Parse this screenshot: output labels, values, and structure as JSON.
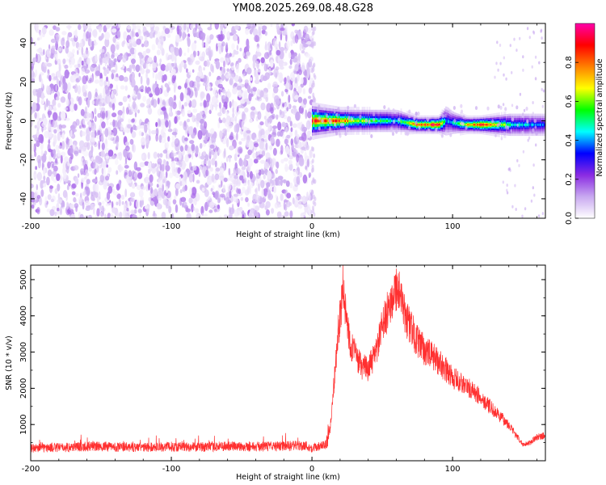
{
  "title": "YM08.2025.269.08.48.G28",
  "chart_data": [
    {
      "type": "heatmap",
      "xlabel": "Height of straight line (km)",
      "ylabel": "Frequency (Hz)",
      "xlim": [
        -200,
        166
      ],
      "ylim": [
        -50,
        50
      ],
      "xticks": [
        -200,
        -100,
        0,
        100
      ],
      "yticks": [
        -40,
        -20,
        0,
        20,
        40
      ],
      "colorbar": {
        "label": "Normalized spectral amplitude",
        "range": [
          0,
          1
        ],
        "ticks": [
          "0.0",
          "0.2",
          "0.4",
          "0.6",
          "0.8"
        ],
        "colormap": [
          "#ffffff",
          "#c8a8f0",
          "#8a2be2",
          "#0000ff",
          "#00ffff",
          "#00ff00",
          "#ffff00",
          "#ff8000",
          "#ff0000",
          "#ff00aa"
        ]
      },
      "noise_region_x": [
        -200,
        0
      ],
      "noise_amplitude_range": [
        0.0,
        0.15
      ],
      "signal_band": {
        "x": [
          0,
          20,
          40,
          60,
          75,
          90,
          95,
          100,
          110,
          120,
          140,
          166
        ],
        "center_frequency_hz": [
          0,
          0,
          0,
          0,
          -2,
          -2,
          0,
          -1,
          -2,
          -2,
          -2,
          -2
        ],
        "peak_amplitude": [
          0.85,
          0.8,
          0.55,
          0.45,
          0.85,
          0.9,
          0.4,
          0.45,
          0.7,
          0.9,
          0.5,
          0.35
        ],
        "bandwidth_hz": [
          4,
          3,
          3,
          3,
          2,
          2,
          4,
          3,
          2,
          2,
          3,
          3
        ]
      }
    },
    {
      "type": "line",
      "xlabel": "Height of straight line (km)",
      "ylabel": "SNR (10 * v/v)",
      "xlim": [
        -200,
        166
      ],
      "ylim": [
        0,
        5400
      ],
      "xticks": [
        -200,
        -100,
        0,
        100
      ],
      "yticks": [
        1000,
        2000,
        3000,
        4000,
        5000
      ],
      "color": "#ff3030",
      "series": [
        {
          "x": [
            -200,
            -180,
            -160,
            -140,
            -120,
            -100,
            -80,
            -60,
            -40,
            -20,
            -5,
            0,
            10,
            13,
            16,
            19,
            21,
            22,
            24,
            27,
            30,
            35,
            40,
            45,
            50,
            55,
            58,
            60,
            62,
            65,
            70,
            75,
            80,
            90,
            100,
            110,
            120,
            130,
            140,
            145,
            150,
            155,
            160,
            166
          ],
          "y": [
            350,
            360,
            400,
            380,
            370,
            390,
            380,
            400,
            390,
            400,
            420,
            350,
            420,
            900,
            2300,
            3700,
            4400,
            4750,
            4100,
            3300,
            3000,
            2600,
            2550,
            2900,
            3700,
            4250,
            4650,
            4800,
            4650,
            4100,
            3700,
            3300,
            3050,
            2750,
            2300,
            2050,
            1750,
            1350,
            1000,
            700,
            450,
            500,
            650,
            700
          ]
        }
      ]
    }
  ]
}
